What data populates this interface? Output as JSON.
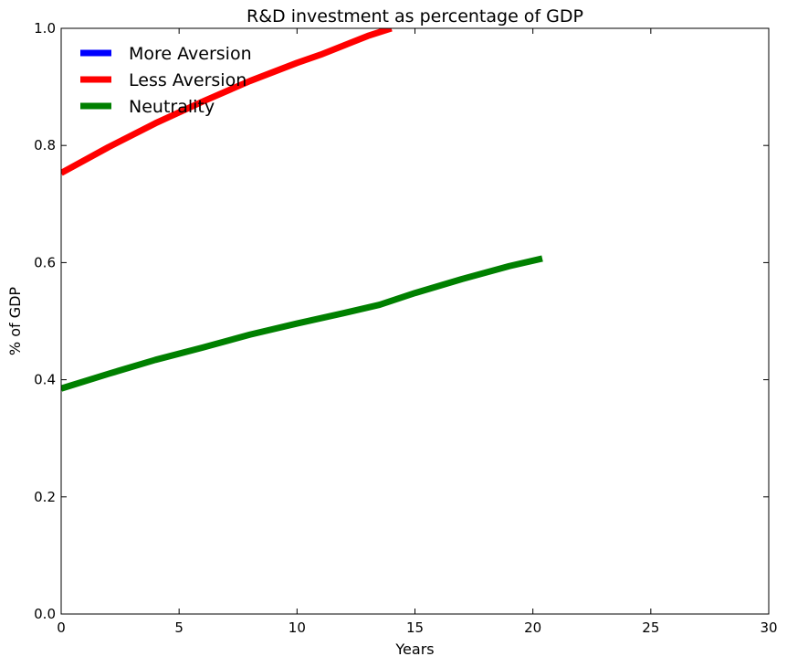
{
  "chart_data": {
    "type": "line",
    "title": "R&D investment as percentage of  GDP",
    "xlabel": "Years",
    "ylabel": "% of GDP",
    "xlim": [
      0,
      30
    ],
    "ylim": [
      0.0,
      1.0
    ],
    "xticks": [
      0,
      5,
      10,
      15,
      20,
      25,
      30
    ],
    "yticks": [
      0.0,
      0.2,
      0.4,
      0.6,
      0.8,
      1.0
    ],
    "xtick_labels": [
      "0",
      "5",
      "10",
      "15",
      "20",
      "25",
      "30"
    ],
    "ytick_labels": [
      "0.0",
      "0.2",
      "0.4",
      "0.6",
      "0.8",
      "1.0"
    ],
    "grid": false,
    "legend_position": "top-left",
    "series": [
      {
        "name": "More Aversion",
        "color": "#0000ff",
        "x": [],
        "y": []
      },
      {
        "name": "Less Aversion",
        "color": "#ff0000",
        "x": [
          0,
          2,
          4,
          6,
          8,
          10,
          11,
          12,
          13,
          14
        ],
        "y": [
          0.753,
          0.797,
          0.838,
          0.875,
          0.91,
          0.941,
          0.955,
          0.971,
          0.987,
          1.0
        ]
      },
      {
        "name": "Neutrality",
        "color": "#008000",
        "x": [
          0,
          2,
          4,
          6,
          8,
          10,
          12,
          13.5,
          15,
          17,
          19,
          20.4
        ],
        "y": [
          0.385,
          0.41,
          0.434,
          0.455,
          0.477,
          0.496,
          0.514,
          0.528,
          0.548,
          0.572,
          0.594,
          0.607
        ]
      }
    ]
  }
}
